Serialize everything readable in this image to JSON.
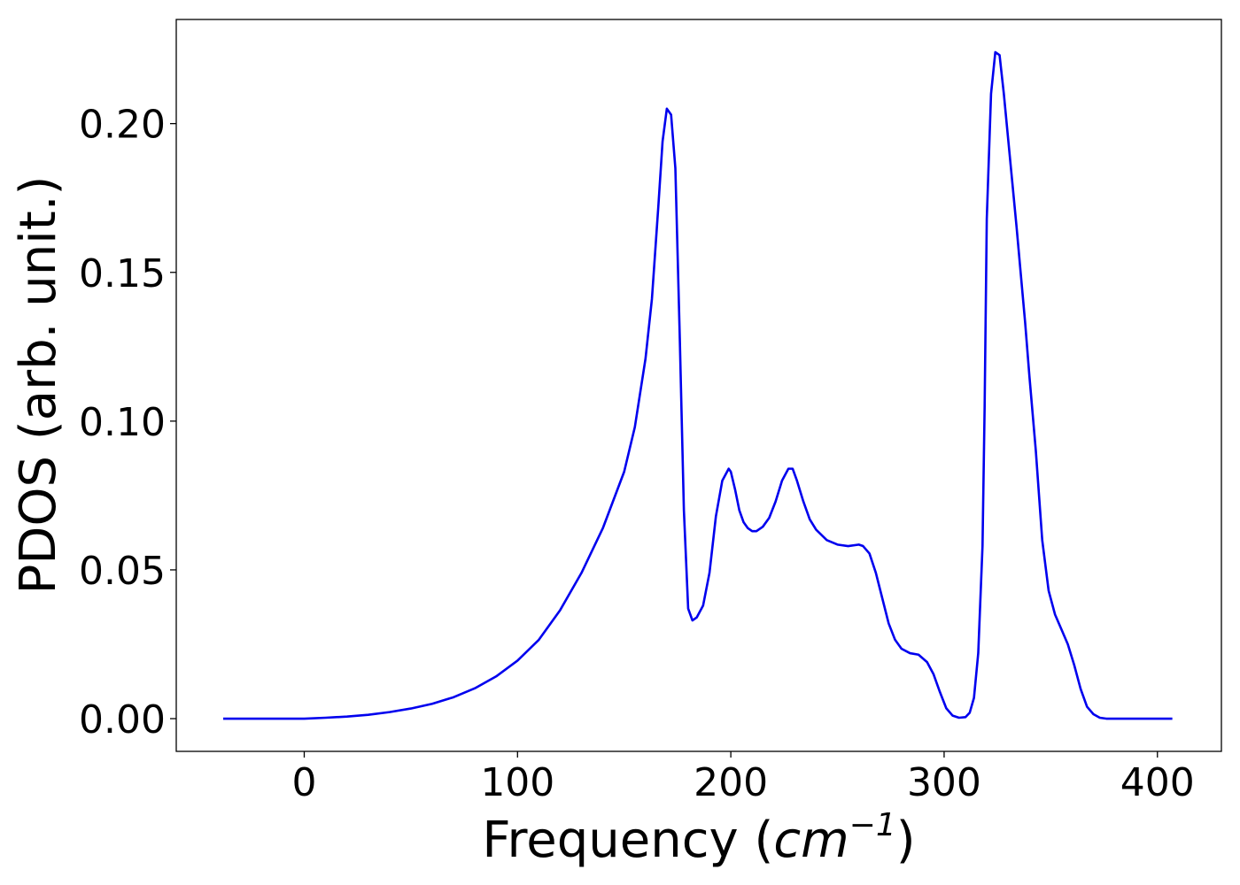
{
  "chart_data": {
    "type": "line",
    "xlabel_prefix": "Frequency (",
    "xlabel_math_base": "cm",
    "xlabel_math_sup": "−1",
    "xlabel_suffix": ")",
    "ylabel": "PDOS (arb. unit.)",
    "xlim": [
      -60,
      430
    ],
    "ylim": [
      -0.011,
      0.235
    ],
    "xticks": [
      0,
      100,
      200,
      300,
      400
    ],
    "xtick_labels": [
      "0",
      "100",
      "200",
      "300",
      "400"
    ],
    "yticks": [
      0.0,
      0.05,
      0.1,
      0.15,
      0.2
    ],
    "ytick_labels": [
      "0.00",
      "0.05",
      "0.10",
      "0.15",
      "0.20"
    ],
    "grid": false,
    "colors": {
      "series": "#0000ee"
    },
    "series": [
      {
        "x": [
          -38,
          0,
          10,
          20,
          30,
          40,
          50,
          60,
          70,
          80,
          90,
          100,
          110,
          120,
          130,
          140,
          150,
          155,
          160,
          163,
          166,
          168,
          170,
          172,
          174,
          176,
          178,
          180,
          182,
          184,
          187,
          190,
          193,
          196,
          199,
          200,
          202,
          204,
          206,
          208,
          210,
          212,
          215,
          218,
          221,
          224,
          227,
          229,
          231,
          234,
          237,
          240,
          245,
          250,
          255,
          260,
          262,
          265,
          268,
          271,
          274,
          277,
          280,
          284,
          288,
          292,
          295,
          298,
          301,
          304,
          307,
          310,
          312,
          314,
          316,
          318,
          319,
          320,
          322,
          324,
          326,
          328,
          330,
          332,
          334,
          336,
          338,
          340,
          343,
          346,
          349,
          352,
          355,
          358,
          361,
          364,
          367,
          370,
          373,
          376,
          380,
          390,
          400,
          407
        ],
        "y": [
          0.0,
          0.0,
          0.0003,
          0.0007,
          0.0013,
          0.0022,
          0.0034,
          0.005,
          0.0072,
          0.0102,
          0.0142,
          0.0195,
          0.0265,
          0.0365,
          0.049,
          0.064,
          0.083,
          0.098,
          0.121,
          0.141,
          0.172,
          0.194,
          0.205,
          0.203,
          0.185,
          0.13,
          0.07,
          0.037,
          0.033,
          0.034,
          0.038,
          0.049,
          0.068,
          0.08,
          0.084,
          0.083,
          0.077,
          0.07,
          0.066,
          0.064,
          0.063,
          0.063,
          0.0645,
          0.0675,
          0.073,
          0.08,
          0.084,
          0.084,
          0.08,
          0.073,
          0.067,
          0.0635,
          0.06,
          0.0585,
          0.058,
          0.0585,
          0.058,
          0.0555,
          0.049,
          0.0405,
          0.032,
          0.0265,
          0.0235,
          0.022,
          0.0215,
          0.019,
          0.015,
          0.009,
          0.0035,
          0.001,
          0.0003,
          0.0005,
          0.002,
          0.007,
          0.022,
          0.058,
          0.105,
          0.168,
          0.21,
          0.224,
          0.223,
          0.21,
          0.195,
          0.18,
          0.165,
          0.149,
          0.133,
          0.115,
          0.09,
          0.06,
          0.043,
          0.035,
          0.03,
          0.025,
          0.018,
          0.01,
          0.004,
          0.0015,
          0.0003,
          0.0,
          0.0,
          0.0,
          0.0,
          0.0
        ]
      }
    ]
  }
}
